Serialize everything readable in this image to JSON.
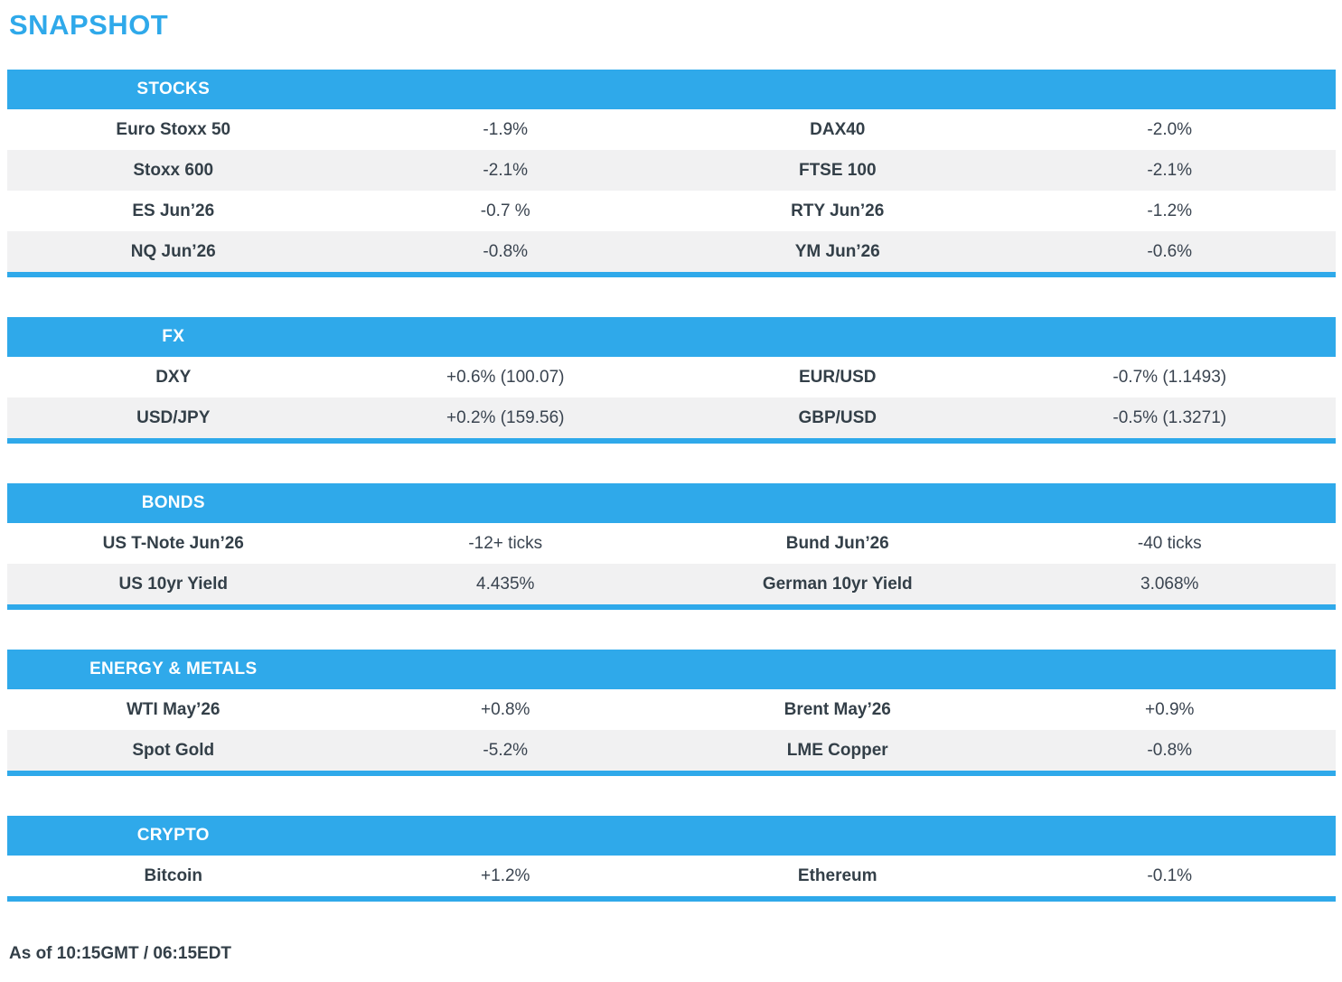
{
  "page": {
    "title": "SNAPSHOT",
    "footer": "As of 10:15GMT / 06:15EDT"
  },
  "colors": {
    "accent_blue": "#2fa9ea",
    "row_alt_gray": "#f1f1f2",
    "text_dark": "#333f48"
  },
  "sections": [
    {
      "header": "STOCKS",
      "rows": [
        [
          "Euro Stoxx 50",
          "-1.9%",
          "DAX40",
          "-2.0%"
        ],
        [
          "Stoxx 600",
          "-2.1%",
          "FTSE 100",
          "-2.1%"
        ],
        [
          "ES Jun’26",
          "-0.7 %",
          "RTY Jun’26",
          "-1.2%"
        ],
        [
          "NQ Jun’26",
          "-0.8%",
          "YM Jun’26",
          "-0.6%"
        ]
      ]
    },
    {
      "header": "FX",
      "rows": [
        [
          "DXY",
          "+0.6% (100.07)",
          "EUR/USD",
          "-0.7% (1.1493)"
        ],
        [
          "USD/JPY",
          "+0.2% (159.56)",
          "GBP/USD",
          "-0.5% (1.3271)"
        ]
      ]
    },
    {
      "header": "BONDS",
      "rows": [
        [
          "US T-Note Jun’26",
          "-12+ ticks",
          "Bund Jun’26",
          "-40 ticks"
        ],
        [
          "US 10yr Yield",
          "4.435%",
          "German 10yr Yield",
          "3.068%"
        ]
      ]
    },
    {
      "header": "ENERGY & METALS",
      "rows": [
        [
          "WTI May’26",
          "+0.8%",
          "Brent May’26",
          "+0.9%"
        ],
        [
          "Spot Gold",
          "-5.2%",
          "LME Copper",
          "-0.8%"
        ]
      ]
    },
    {
      "header": "CRYPTO",
      "rows": [
        [
          "Bitcoin",
          "+1.2%",
          "Ethereum",
          "-0.1%"
        ]
      ]
    }
  ]
}
